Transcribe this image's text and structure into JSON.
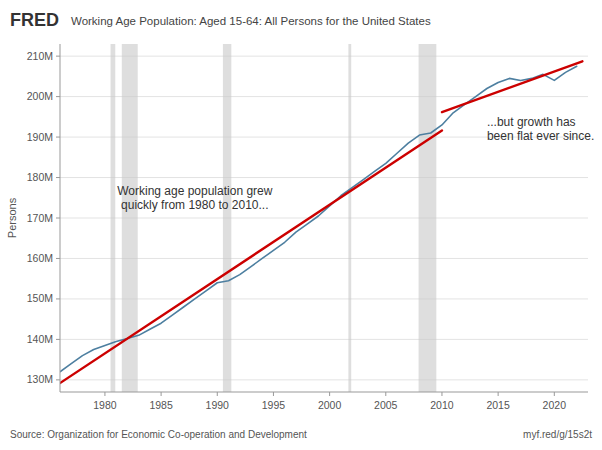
{
  "chart_data": {
    "type": "line",
    "header": "FRED",
    "title": "Working Age Population: Aged 15-64: All Persons for the United States",
    "y_label": "Persons",
    "source": "Source: Organization for Economic Co-operation and Development",
    "url": "myf.red/g/15s2t",
    "xlim": [
      1976,
      2023
    ],
    "ylim": [
      127000000,
      213000000
    ],
    "xticks": [
      1980,
      1985,
      1990,
      1995,
      2000,
      2005,
      2010,
      2015,
      2020
    ],
    "yticks": [
      {
        "value": 130000000,
        "label": "130M"
      },
      {
        "value": 140000000,
        "label": "140M"
      },
      {
        "value": 150000000,
        "label": "150M"
      },
      {
        "value": 160000000,
        "label": "160M"
      },
      {
        "value": 170000000,
        "label": "170M"
      },
      {
        "value": 180000000,
        "label": "180M"
      },
      {
        "value": 190000000,
        "label": "190M"
      },
      {
        "value": 200000000,
        "label": "200M"
      },
      {
        "value": 210000000,
        "label": "210M"
      }
    ],
    "grid": "y",
    "recessions": [
      [
        1980.5,
        1980.92
      ],
      [
        1981.5,
        1982.92
      ],
      [
        1990.5,
        1991.25
      ],
      [
        2001.67,
        2001.92
      ],
      [
        2007.92,
        2009.5
      ]
    ],
    "series": [
      {
        "type": "line",
        "color": "#4d7fa0",
        "x": [
          1976,
          1977,
          1978,
          1979,
          1980,
          1981,
          1982,
          1983,
          1984,
          1985,
          1986,
          1987,
          1988,
          1989,
          1990,
          1991,
          1992,
          1993,
          1994,
          1995,
          1996,
          1997,
          1998,
          1999,
          2000,
          2001,
          2002,
          2003,
          2004,
          2005,
          2006,
          2007,
          2008,
          2009,
          2010,
          2011,
          2012,
          2013,
          2014,
          2015,
          2016,
          2017,
          2018,
          2019,
          2020,
          2021,
          2022
        ],
        "values": [
          132000000,
          134000000,
          136000000,
          137500000,
          138500000,
          139500000,
          140200000,
          141000000,
          142500000,
          144000000,
          146000000,
          148000000,
          150000000,
          152000000,
          154000000,
          154500000,
          156000000,
          158000000,
          160000000,
          162000000,
          164000000,
          166500000,
          168500000,
          170500000,
          173000000,
          175500000,
          177500000,
          179500000,
          181500000,
          183500000,
          186000000,
          188500000,
          190500000,
          191000000,
          193000000,
          196000000,
          198000000,
          200000000,
          202000000,
          203500000,
          204500000,
          204000000,
          204500000,
          205500000,
          204000000,
          206000000,
          207500000
        ]
      },
      {
        "type": "line",
        "color": "#cc0000",
        "x": [
          1976,
          2010
        ],
        "values": [
          129201904.76,
          191638095.24
        ]
      },
      {
        "type": "line",
        "color": "#cc0000",
        "x": [
          2010,
          2022.5
        ],
        "values": [
          196159340.66,
          208728021.98
        ]
      }
    ],
    "annotations": [
      {
        "text": "Working age population grew\nquickly from 1980 to 2010...",
        "x": 1988,
        "y": 175000000
      },
      {
        "text": "...but growth has\nbeen flat ever since.",
        "x": 2014,
        "y": 192000000
      }
    ]
  }
}
